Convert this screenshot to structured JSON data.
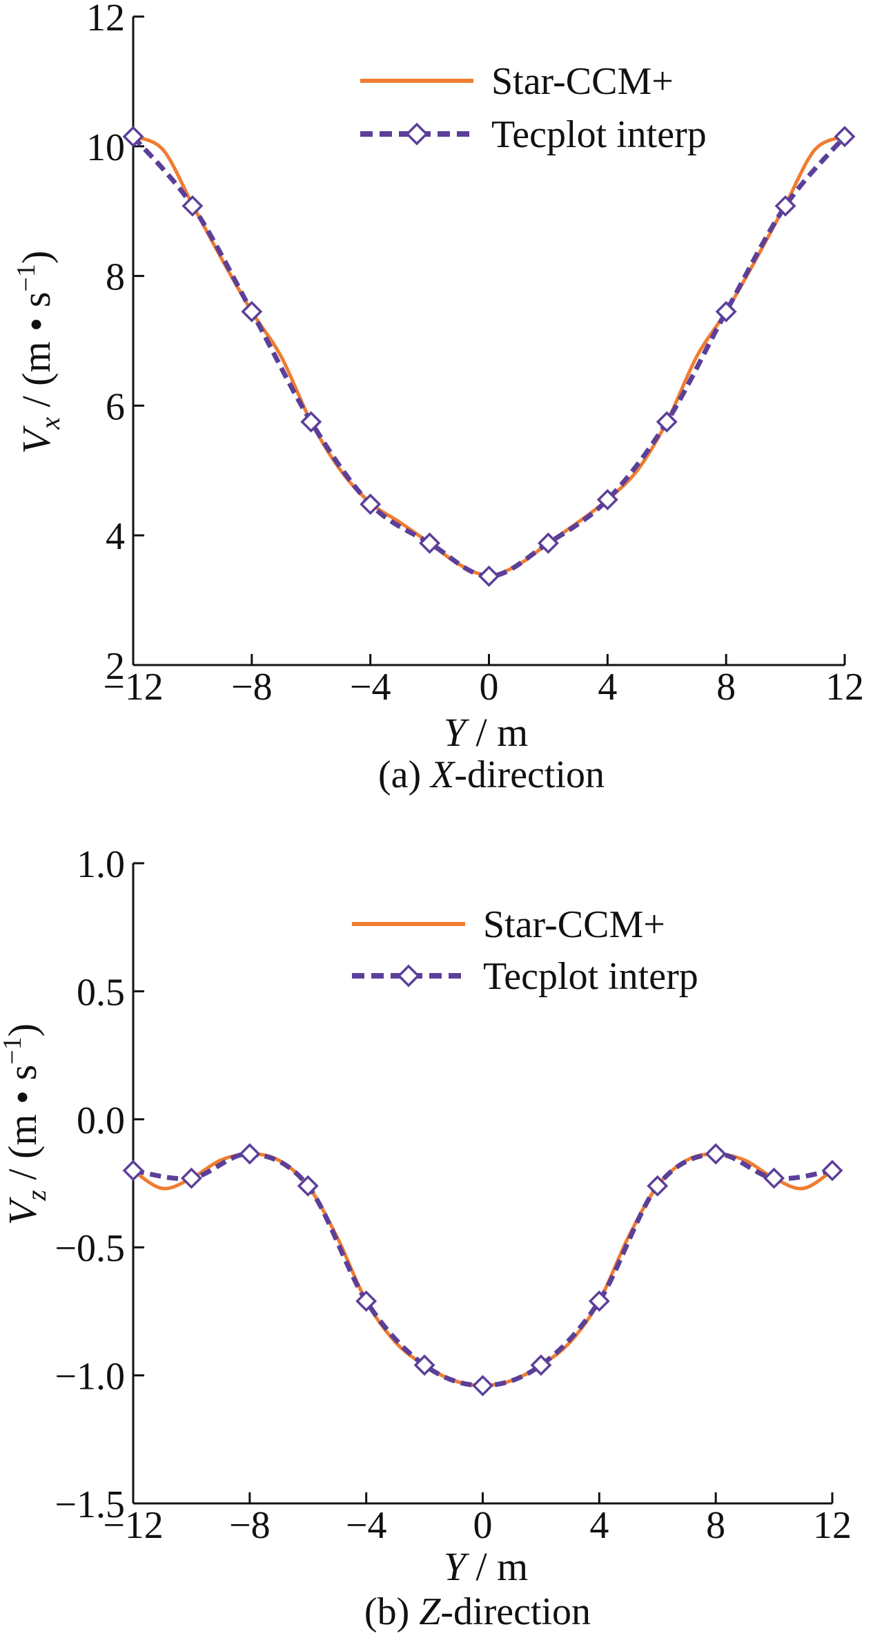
{
  "colors": {
    "star_ccm": "#ef7d31",
    "tecplot": "#5b3f99",
    "axis": "#111111"
  },
  "chart_data": [
    {
      "type": "line",
      "caption": "(a) X-direction",
      "xlabel": "Y / m",
      "ylabel": "V_x / (m • s^-1)",
      "xlim": [
        -12,
        12
      ],
      "ylim": [
        2,
        12
      ],
      "xticks": [
        "−12",
        "−8",
        "−4",
        "0",
        "4",
        "8",
        "12"
      ],
      "xtick_values": [
        -12,
        -8,
        -4,
        0,
        4,
        8,
        12
      ],
      "yticks": [
        "2",
        "4",
        "6",
        "8",
        "10",
        "12"
      ],
      "ytick_values": [
        2,
        4,
        6,
        8,
        10,
        12
      ],
      "legend": {
        "position": "top-right",
        "entries": [
          "Star-CCM+",
          "Tecplot interp"
        ]
      },
      "series": [
        {
          "name": "Star-CCM+",
          "style": "solid",
          "x": [
            -12,
            -11,
            -10,
            -9,
            -8,
            -7,
            -6,
            -5,
            -4,
            -3,
            -2,
            -1,
            0,
            1,
            2,
            3,
            4,
            5,
            6,
            7,
            8,
            9,
            10,
            11,
            12
          ],
          "y": [
            10.15,
            9.95,
            9.1,
            8.25,
            7.45,
            6.75,
            5.75,
            5.0,
            4.5,
            4.2,
            3.88,
            3.55,
            3.38,
            3.55,
            3.88,
            4.2,
            4.55,
            5.0,
            5.75,
            6.75,
            7.45,
            8.25,
            9.1,
            9.95,
            10.15
          ]
        },
        {
          "name": "Tecplot interp",
          "style": "dashed-diamond",
          "x": [
            -12,
            -10,
            -8,
            -6,
            -4,
            -2,
            0,
            2,
            4,
            6,
            8,
            10,
            12
          ],
          "y": [
            10.15,
            9.08,
            7.45,
            5.75,
            4.48,
            3.88,
            3.37,
            3.88,
            4.55,
            5.75,
            7.45,
            9.08,
            10.15
          ]
        }
      ]
    },
    {
      "type": "line",
      "caption": "(b) Z-direction",
      "xlabel": "Y / m",
      "ylabel": "V_z / (m • s^-1)",
      "xlim": [
        -12,
        12
      ],
      "ylim": [
        -1.5,
        1.0
      ],
      "xticks": [
        "−12",
        "−8",
        "−4",
        "0",
        "4",
        "8",
        "12"
      ],
      "xtick_values": [
        -12,
        -8,
        -4,
        0,
        4,
        8,
        12
      ],
      "yticks": [
        "−1.5",
        "−1.0",
        "−0.5",
        "0.0",
        "0.5",
        "1.0"
      ],
      "ytick_values": [
        -1.5,
        -1.0,
        -0.5,
        0.0,
        0.5,
        1.0
      ],
      "legend": {
        "position": "top-right",
        "entries": [
          "Star-CCM+",
          "Tecplot interp"
        ]
      },
      "series": [
        {
          "name": "Star-CCM+",
          "style": "solid",
          "x": [
            -12,
            -11,
            -10,
            -9,
            -8,
            -7,
            -6,
            -5,
            -4,
            -3,
            -2,
            -1,
            0,
            1,
            2,
            3,
            4,
            5,
            6,
            7,
            8,
            9,
            10,
            11,
            12
          ],
          "y": [
            -0.2,
            -0.27,
            -0.23,
            -0.16,
            -0.135,
            -0.16,
            -0.26,
            -0.46,
            -0.71,
            -0.87,
            -0.96,
            -1.02,
            -1.04,
            -1.02,
            -0.96,
            -0.87,
            -0.71,
            -0.46,
            -0.26,
            -0.16,
            -0.135,
            -0.16,
            -0.23,
            -0.27,
            -0.2
          ]
        },
        {
          "name": "Tecplot interp",
          "style": "dashed-diamond",
          "x": [
            -12,
            -10,
            -8,
            -6,
            -4,
            -2,
            0,
            2,
            4,
            6,
            8,
            10,
            12
          ],
          "y": [
            -0.2,
            -0.23,
            -0.135,
            -0.26,
            -0.71,
            -0.96,
            -1.04,
            -0.96,
            -0.71,
            -0.26,
            -0.135,
            -0.23,
            -0.2
          ]
        }
      ]
    }
  ]
}
